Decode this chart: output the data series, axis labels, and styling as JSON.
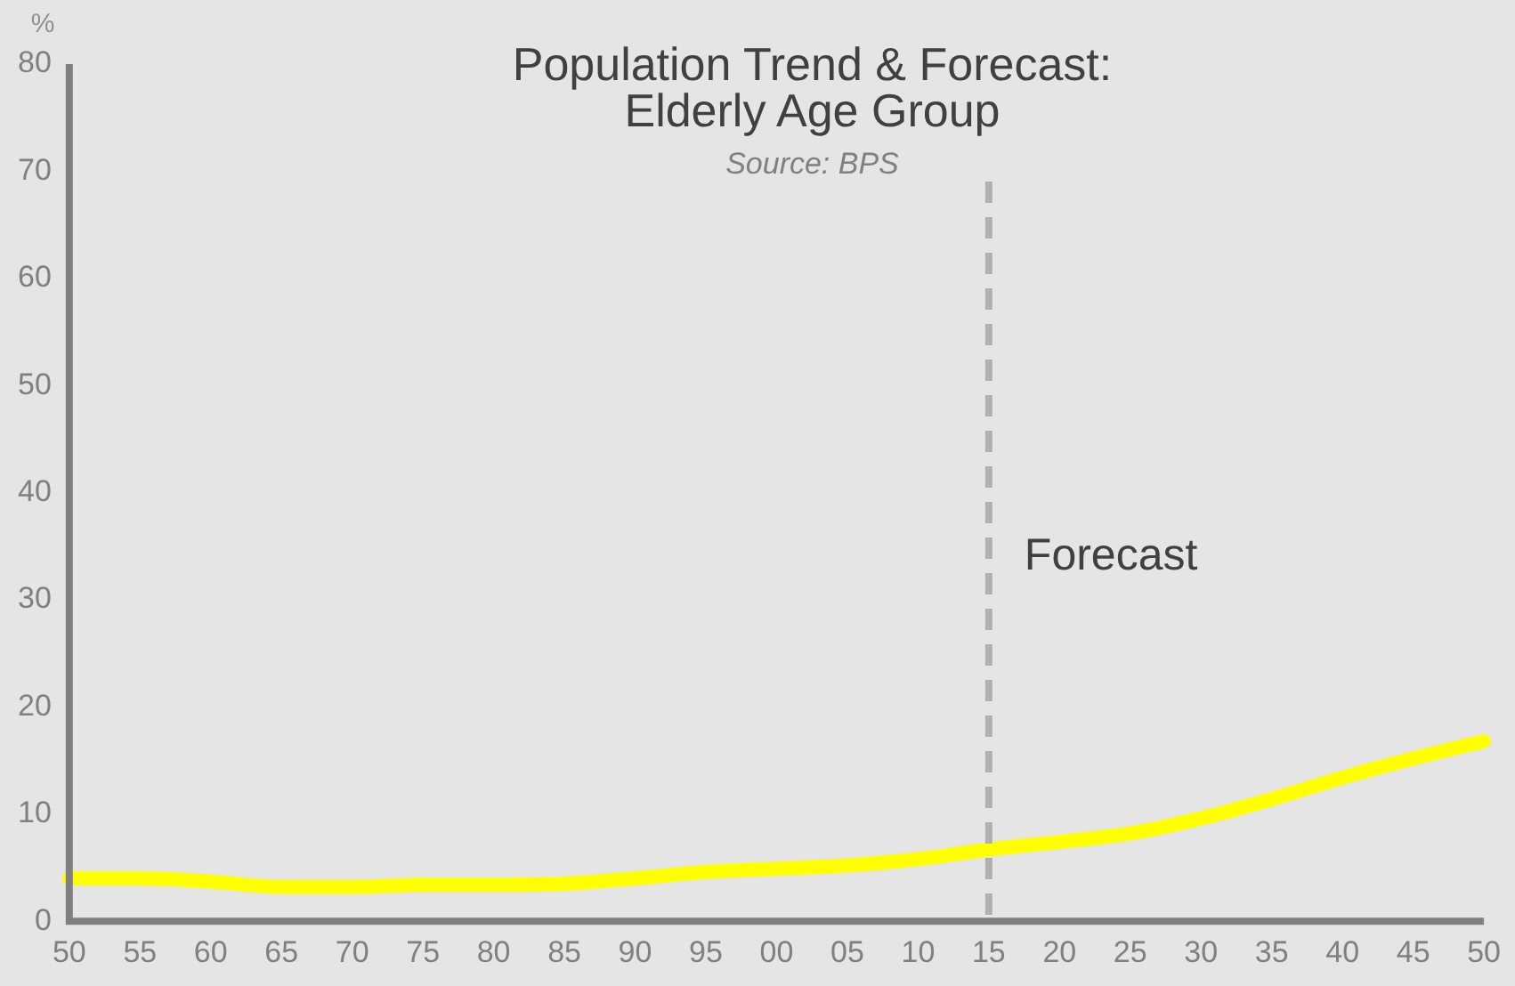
{
  "chart_data": {
    "type": "line",
    "title": "Population Trend & Forecast:\nElderly Age Group",
    "ylabel": "%",
    "annotations": [
      "Source: BPS"
    ],
    "categories": [
      "50",
      "55",
      "60",
      "65",
      "70",
      "75",
      "80",
      "85",
      "90",
      "95",
      "00",
      "05",
      "10",
      "15",
      "20",
      "25",
      "30",
      "35",
      "40",
      "45",
      "50"
    ],
    "series": [
      {
        "color": "#ffff00",
        "values": [
          4.0,
          4.0,
          3.7,
          3.2,
          3.2,
          3.4,
          3.4,
          3.5,
          4.0,
          4.6,
          4.9,
          5.2,
          5.8,
          6.7,
          7.4,
          8.2,
          9.6,
          11.4,
          13.4,
          15.2,
          16.8
        ]
      }
    ],
    "ylim": [
      0,
      80
    ],
    "yticks": [
      0,
      10,
      20,
      30,
      40,
      50,
      60,
      70,
      80
    ],
    "ref_lines": [
      {
        "axis": "x",
        "value": "15",
        "label": "Forecast",
        "color": "#b0b0b0",
        "line_style": "dashed"
      }
    ],
    "grid": false,
    "legend": false,
    "marker": "none",
    "line_style": "solid"
  }
}
